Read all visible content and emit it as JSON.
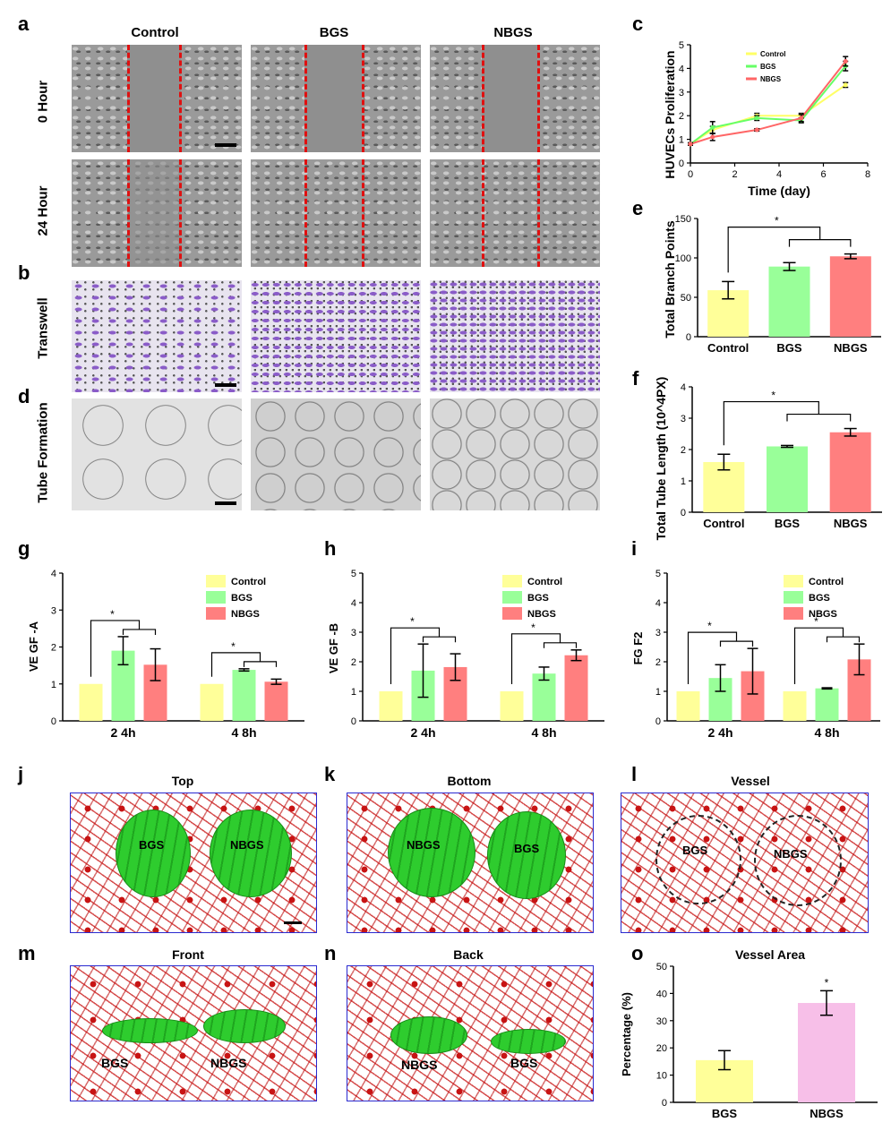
{
  "panels": {
    "a": "a",
    "b": "b",
    "c": "c",
    "d": "d",
    "e": "e",
    "f": "f",
    "g": "g",
    "h": "h",
    "i": "i",
    "j": "j",
    "k": "k",
    "l": "l",
    "m": "m",
    "n": "n",
    "o": "o"
  },
  "micrographs": {
    "columns": [
      "Control",
      "BGS",
      "NBGS"
    ],
    "rows": [
      "0 Hour",
      "24 Hour",
      "Transwell",
      "Tube Formation"
    ]
  },
  "views3d": {
    "top": {
      "title": "Top",
      "left_label": "BGS",
      "right_label": "NBGS"
    },
    "bottom": {
      "title": "Bottom",
      "left_label": "NBGS",
      "right_label": "BGS"
    },
    "vessel": {
      "title": "Vessel",
      "left_label": "BGS",
      "right_label": "NBGS"
    },
    "front": {
      "title": "Front",
      "left_label": "BGS",
      "right_label": "NBGS"
    },
    "back": {
      "title": "Back",
      "left_label": "NBGS",
      "right_label": "BGS"
    }
  },
  "colors": {
    "control": "#ffff99",
    "bgs": "#99ff99",
    "nbgs": "#ff7f7f",
    "nbgs_o": "#f7bfe8",
    "line_control": "#ffff66",
    "line_bgs": "#66ff66",
    "line_nbgs": "#ff6666"
  },
  "chart_data": [
    {
      "id": "c",
      "type": "line",
      "ylabel": "HUVECs Proliferation",
      "xlabel": "Time (day)",
      "xlim": [
        0,
        8
      ],
      "ylim": [
        0,
        5
      ],
      "xticks": [
        "0",
        "2",
        "4",
        "6",
        "8"
      ],
      "yticks": [
        "0",
        "1",
        "2",
        "3",
        "4",
        "5"
      ],
      "x": [
        0,
        1,
        3,
        5,
        7
      ],
      "series": [
        {
          "name": "Control",
          "values": [
            0.8,
            1.4,
            2.0,
            2.0,
            3.3
          ],
          "err": [
            0.05,
            0.15,
            0.1,
            0.1,
            0.1
          ]
        },
        {
          "name": "BGS",
          "values": [
            0.8,
            1.5,
            1.9,
            1.8,
            4.1
          ],
          "err": [
            0.05,
            0.25,
            0.1,
            0.1,
            0.2
          ]
        },
        {
          "name": "NBGS",
          "values": [
            0.8,
            1.1,
            1.4,
            1.9,
            4.3
          ],
          "err": [
            0.05,
            0.15,
            0.05,
            0.15,
            0.2
          ]
        }
      ]
    },
    {
      "id": "e",
      "type": "bar",
      "ylabel": "Total Branch Points",
      "categories": [
        "Control",
        "BGS",
        "NBGS"
      ],
      "values": [
        59,
        89,
        102
      ],
      "err": [
        11,
        5,
        3
      ],
      "ylim": [
        0,
        150
      ],
      "yticks": [
        "0",
        "50",
        "100",
        "150"
      ],
      "sig": "*"
    },
    {
      "id": "f",
      "type": "bar",
      "ylabel": "Total Tube Length (10^4PX)",
      "categories": [
        "Control",
        "BGS",
        "NBGS"
      ],
      "values": [
        1.6,
        2.1,
        2.55
      ],
      "err": [
        0.25,
        0.03,
        0.12
      ],
      "ylim": [
        0,
        4
      ],
      "yticks": [
        "0",
        "1",
        "2",
        "3",
        "4"
      ],
      "sig": "*"
    },
    {
      "id": "g",
      "type": "bar",
      "ylabel": "VE GF -A",
      "categories": [
        "2 4h",
        "4 8h"
      ],
      "series": [
        {
          "name": "Control",
          "values": [
            1.0,
            1.0
          ],
          "err": [
            0,
            0
          ]
        },
        {
          "name": "BGS",
          "values": [
            1.9,
            1.38
          ],
          "err": [
            0.38,
            0.03
          ]
        },
        {
          "name": "NBGS",
          "values": [
            1.52,
            1.06
          ],
          "err": [
            0.43,
            0.07
          ]
        }
      ],
      "ylim": [
        0,
        4
      ],
      "yticks": [
        "0",
        "1",
        "2",
        "3",
        "4"
      ],
      "sig": "*"
    },
    {
      "id": "h",
      "type": "bar",
      "ylabel": "VE GF -B",
      "categories": [
        "2 4h",
        "4 8h"
      ],
      "series": [
        {
          "name": "Control",
          "values": [
            1.0,
            1.0
          ],
          "err": [
            0,
            0
          ]
        },
        {
          "name": "BGS",
          "values": [
            1.7,
            1.6
          ],
          "err": [
            0.9,
            0.22
          ]
        },
        {
          "name": "NBGS",
          "values": [
            1.82,
            2.22
          ],
          "err": [
            0.45,
            0.18
          ]
        }
      ],
      "ylim": [
        0,
        5
      ],
      "yticks": [
        "0",
        "1",
        "2",
        "3",
        "4",
        "5"
      ],
      "sig": "*"
    },
    {
      "id": "i",
      "type": "bar",
      "ylabel": "FG F2",
      "categories": [
        "2 4h",
        "4 8h"
      ],
      "series": [
        {
          "name": "Control",
          "values": [
            1.0,
            1.0
          ],
          "err": [
            0,
            0
          ]
        },
        {
          "name": "BGS",
          "values": [
            1.45,
            1.1
          ],
          "err": [
            0.45,
            0.02
          ]
        },
        {
          "name": "NBGS",
          "values": [
            1.68,
            2.08
          ],
          "err": [
            0.77,
            0.52
          ]
        }
      ],
      "ylim": [
        0,
        5
      ],
      "yticks": [
        "0",
        "1",
        "2",
        "3",
        "4",
        "5"
      ],
      "sig": "*"
    },
    {
      "id": "o",
      "type": "bar",
      "title": "Vessel Area",
      "ylabel": "Percentage (%)",
      "categories": [
        "BGS",
        "NBGS"
      ],
      "values": [
        15.5,
        36.5
      ],
      "err": [
        3.5,
        4.5
      ],
      "ylim": [
        0,
        50
      ],
      "yticks": [
        "0",
        "10",
        "20",
        "30",
        "40",
        "50"
      ],
      "sig": "*"
    }
  ]
}
